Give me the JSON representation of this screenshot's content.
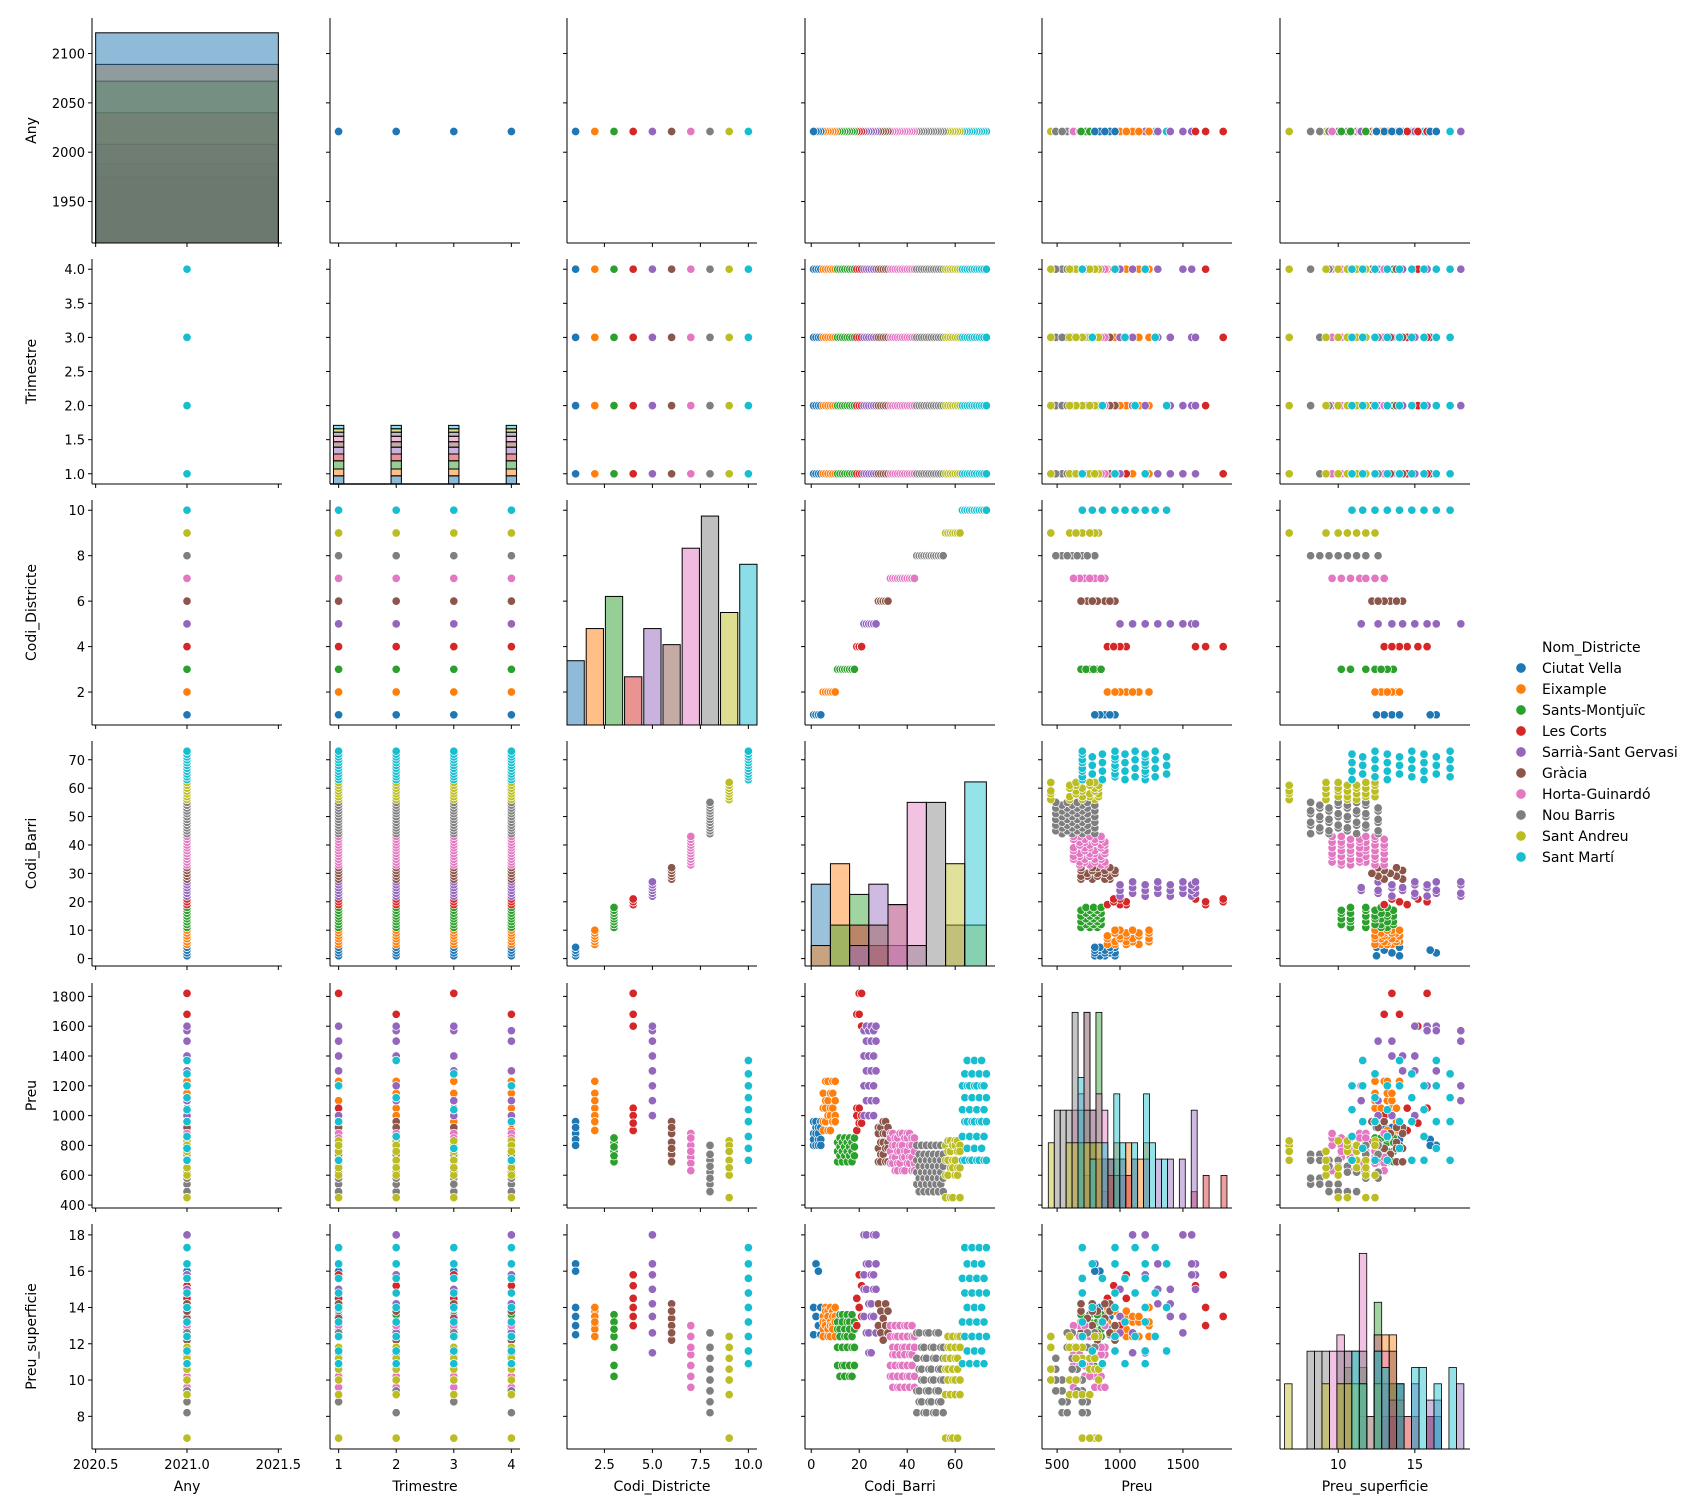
{
  "chart_data": {
    "type": "pairplot",
    "variables": [
      "Any",
      "Trimestre",
      "Codi_Districte",
      "Codi_Barri",
      "Preu",
      "Preu_superficie"
    ],
    "hue": "Nom_Districte",
    "legend": {
      "title": "Nom_Districte",
      "placement": "right",
      "entries": [
        "Ciutat Vella",
        "Eixample",
        "Sants-Montjuïc",
        "Les Corts",
        "Sarrià-Sant Gervasi",
        "Gràcia",
        "Horta-Guinardó",
        "Nou Barris",
        "Sant Andreu",
        "Sant Martí"
      ]
    },
    "colors": [
      "#1f77b4",
      "#ff7f0e",
      "#2ca02c",
      "#d62728",
      "#9467bd",
      "#8c564b",
      "#e377c2",
      "#7f7f7f",
      "#bcbd22",
      "#17becf"
    ],
    "year": 2021,
    "quarters": [
      1,
      2,
      3,
      4
    ],
    "districts": [
      {
        "code": 1,
        "barris": [
          1,
          2,
          3,
          4
        ],
        "preu": [
          800,
          840,
          880,
          920,
          960
        ],
        "preu_superficie": [
          12.5,
          13.0,
          13.5,
          14.0,
          16.0,
          16.4
        ]
      },
      {
        "code": 2,
        "barris": [
          5,
          6,
          7,
          8,
          9,
          10
        ],
        "preu": [
          900,
          960,
          1000,
          1050,
          1100,
          1150,
          1230
        ],
        "preu_superficie": [
          12.4,
          12.8,
          13.0,
          13.2,
          13.5,
          13.8,
          14.0
        ]
      },
      {
        "code": 3,
        "barris": [
          11,
          12,
          13,
          14,
          15,
          16,
          17,
          18
        ],
        "preu": [
          690,
          730,
          760,
          790,
          820,
          850
        ],
        "preu_superficie": [
          10.2,
          10.8,
          11.8,
          12.4,
          12.8,
          13.2,
          13.6
        ]
      },
      {
        "code": 4,
        "barris": [
          19,
          20,
          21
        ],
        "preu": [
          900,
          950,
          1000,
          1050,
          1600,
          1680,
          1820
        ],
        "preu_superficie": [
          13.0,
          13.5,
          14.0,
          14.5,
          15.2,
          15.8
        ]
      },
      {
        "code": 5,
        "barris": [
          22,
          23,
          24,
          25,
          26,
          27
        ],
        "preu": [
          1000,
          1100,
          1200,
          1300,
          1400,
          1500,
          1570,
          1600
        ],
        "preu_superficie": [
          11.5,
          12.6,
          13.5,
          14.2,
          15.0,
          15.8,
          16.4,
          18.0
        ]
      },
      {
        "code": 6,
        "barris": [
          28,
          29,
          30,
          31,
          32
        ],
        "preu": [
          690,
          740,
          780,
          820,
          880,
          920,
          960
        ],
        "preu_superficie": [
          12.2,
          12.6,
          13.0,
          13.4,
          13.8,
          14.2
        ]
      },
      {
        "code": 7,
        "barris": [
          33,
          34,
          35,
          36,
          37,
          38,
          39,
          40,
          41,
          42,
          43
        ],
        "preu": [
          630,
          680,
          720,
          760,
          800,
          850,
          880
        ],
        "preu_superficie": [
          9.6,
          10.2,
          10.8,
          11.4,
          11.8,
          12.4,
          13.0
        ]
      },
      {
        "code": 8,
        "barris": [
          44,
          45,
          46,
          47,
          48,
          49,
          50,
          51,
          52,
          53,
          54,
          55
        ],
        "preu": [
          490,
          540,
          580,
          620,
          660,
          700,
          740,
          800
        ],
        "preu_superficie": [
          8.2,
          8.8,
          9.4,
          10.0,
          10.6,
          11.2,
          11.8,
          12.6
        ]
      },
      {
        "code": 9,
        "barris": [
          56,
          57,
          58,
          59,
          60,
          61,
          62
        ],
        "preu": [
          450,
          600,
          650,
          700,
          760,
          800,
          830
        ],
        "preu_superficie": [
          6.8,
          9.2,
          10.0,
          10.6,
          11.2,
          11.8,
          12.4
        ]
      },
      {
        "code": 10,
        "barris": [
          63,
          64,
          65,
          66,
          67,
          68,
          69,
          70,
          71,
          72,
          73
        ],
        "preu": [
          700,
          780,
          860,
          960,
          1040,
          1120,
          1200,
          1280,
          1370
        ],
        "preu_superficie": [
          10.9,
          11.6,
          12.4,
          13.2,
          14.0,
          14.8,
          15.6,
          16.4,
          17.3
        ]
      }
    ],
    "axes": {
      "Any": {
        "ticks": [
          2020.5,
          2021.0,
          2021.5
        ],
        "tick_labels": [
          "2020.5",
          "2021.0",
          "2021.5"
        ],
        "lim": [
          2020.48,
          2021.52
        ],
        "diag_ticks": [
          1950,
          2000,
          2050,
          2100
        ],
        "diag_tick_labels": [
          "1950",
          "2000",
          "2050",
          "2100"
        ],
        "diag_lim": [
          1908,
          2136
        ]
      },
      "Trimestre": {
        "ticks": [
          1,
          2,
          3,
          4
        ],
        "tick_labels": [
          "1",
          "2",
          "3",
          "4"
        ],
        "lim": [
          0.85,
          4.15
        ],
        "y_ticks": [
          1.0,
          1.5,
          2.0,
          2.5,
          3.0,
          3.5,
          4.0
        ],
        "y_tick_labels": [
          "1.0",
          "1.5",
          "2.0",
          "2.5",
          "3.0",
          "3.5",
          "4.0"
        ]
      },
      "Codi_Districte": {
        "ticks": [
          2.5,
          5.0,
          7.5,
          10.0
        ],
        "tick_labels": [
          "2.5",
          "5.0",
          "7.5",
          "10.0"
        ],
        "lim": [
          0.55,
          10.45
        ],
        "y_ticks": [
          2,
          4,
          6,
          8,
          10
        ],
        "y_tick_labels": [
          "2",
          "4",
          "6",
          "8",
          "10"
        ]
      },
      "Codi_Barri": {
        "ticks": [
          0,
          20,
          40,
          60
        ],
        "tick_labels": [
          "0",
          "20",
          "40",
          "60"
        ],
        "lim": [
          -2.6,
          76.6
        ],
        "y_ticks": [
          0,
          10,
          20,
          30,
          40,
          50,
          60,
          70
        ],
        "y_tick_labels": [
          "0",
          "10",
          "20",
          "30",
          "40",
          "50",
          "60",
          "70"
        ]
      },
      "Preu": {
        "ticks": [
          500,
          1000,
          1500
        ],
        "tick_labels": [
          "500",
          "1000",
          "1500"
        ],
        "lim": [
          380,
          1890
        ],
        "y_ticks": [
          400,
          600,
          800,
          1000,
          1200,
          1400,
          1600,
          1800
        ],
        "y_tick_labels": [
          "400",
          "600",
          "800",
          "1000",
          "1200",
          "1400",
          "1600",
          "1800"
        ]
      },
      "Preu_superficie": {
        "ticks": [
          10,
          15
        ],
        "tick_labels": [
          "10",
          "15"
        ],
        "lim": [
          6.2,
          18.6
        ],
        "y_ticks": [
          8,
          10,
          12,
          14,
          16,
          18
        ],
        "y_tick_labels": [
          "8",
          "10",
          "12",
          "14",
          "16",
          "18"
        ]
      }
    },
    "histograms": {
      "Any": {
        "type": "stacked-full",
        "bottom": 1908,
        "district_tops": [
          2121,
          2089,
          2072,
          2040,
          2008,
          1988,
          1975,
          1975,
          1975,
          1975
        ]
      },
      "Trimestre": {
        "type": "stacked",
        "district_heights": [
          0.12,
          0.1,
          0.12,
          0.1,
          0.1,
          0.08,
          0.08,
          0.06,
          0.05,
          0.05
        ]
      },
      "Codi_Districte": {
        "type": "bars",
        "counts": [
          16,
          24,
          32,
          12,
          24,
          20,
          44,
          52,
          28,
          40
        ]
      },
      "Codi_Barri": {
        "type": "overlay-bins",
        "bins": [
          [
            0,
            8
          ],
          [
            8,
            16
          ],
          [
            16,
            24
          ],
          [
            24,
            32
          ],
          [
            32,
            40
          ],
          [
            40,
            48
          ],
          [
            48,
            56
          ],
          [
            56,
            64
          ],
          [
            64,
            73
          ]
        ],
        "counts": [
          [
            16,
            4,
            0,
            0,
            0,
            0,
            0,
            0,
            0,
            0
          ],
          [
            0,
            20,
            8,
            0,
            0,
            0,
            0,
            0,
            0,
            0
          ],
          [
            0,
            0,
            14,
            8,
            4,
            0,
            0,
            0,
            0,
            0
          ],
          [
            0,
            0,
            0,
            4,
            16,
            8,
            0,
            0,
            0,
            0
          ],
          [
            0,
            0,
            0,
            0,
            4,
            12,
            12,
            0,
            0,
            0
          ],
          [
            0,
            0,
            0,
            0,
            0,
            0,
            32,
            4,
            0,
            0
          ],
          [
            0,
            0,
            0,
            0,
            0,
            0,
            0,
            32,
            0,
            0
          ],
          [
            0,
            0,
            0,
            0,
            0,
            0,
            0,
            8,
            20,
            0
          ],
          [
            0,
            0,
            0,
            0,
            0,
            0,
            0,
            0,
            8,
            36
          ]
        ]
      }
    }
  }
}
